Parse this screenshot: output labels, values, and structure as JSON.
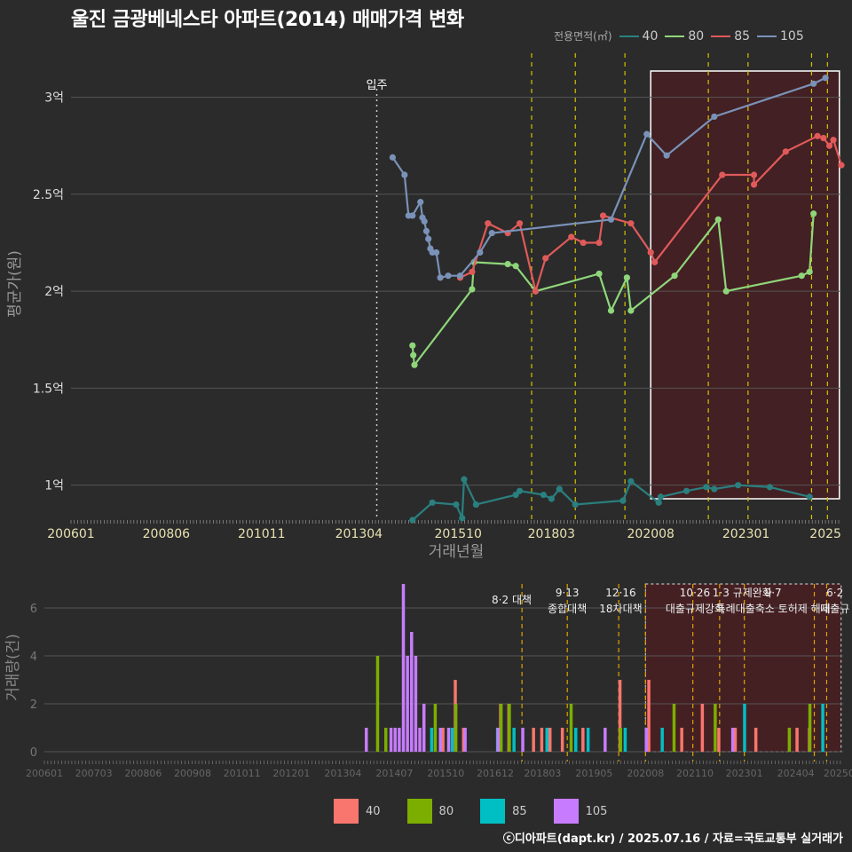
{
  "title": "울진 금광베네스타 아파트(2014) 매매가격 변화",
  "legend_title": "전용면적(㎡)",
  "credit": "ⓒ디아파트(dapt.kr) / 2025.07.16 / 자료=국토교통부 실거래가",
  "colors": {
    "s40": "#2a7f7f",
    "s80": "#8fd67a",
    "s85": "#e05a5a",
    "s105": "#7a92b8",
    "b40": "#f8766d",
    "b80": "#7cae00",
    "b85": "#00bfc4",
    "b105": "#c77cff"
  },
  "chart_data": [
    {
      "type": "line",
      "xlabel": "거래년월",
      "ylabel": "평균가(원)",
      "x_ticks": [
        "200601",
        "200806",
        "201011",
        "201304",
        "201510",
        "201803",
        "202008",
        "202301",
        "2025"
      ],
      "y_ticks": [
        "1억",
        "1.5억",
        "2억",
        "2.5억",
        "3억"
      ],
      "ylim": [
        0.82,
        3.25
      ],
      "annotation": "입주",
      "series": [
        {
          "name": "40",
          "points": [
            [
              2014.6,
              0.82
            ],
            [
              2015.1,
              0.91
            ],
            [
              2015.7,
              0.9
            ],
            [
              2015.85,
              0.83
            ],
            [
              2015.9,
              1.03
            ],
            [
              2016.2,
              0.9
            ],
            [
              2017.2,
              0.95
            ],
            [
              2017.3,
              0.97
            ],
            [
              2017.9,
              0.95
            ],
            [
              2018.1,
              0.93
            ],
            [
              2018.3,
              0.98
            ],
            [
              2018.7,
              0.9
            ],
            [
              2019.9,
              0.92
            ],
            [
              2020.1,
              1.02
            ],
            [
              2020.8,
              0.91
            ],
            [
              2020.85,
              0.94
            ],
            [
              2021.5,
              0.97
            ],
            [
              2022.0,
              0.99
            ],
            [
              2022.2,
              0.98
            ],
            [
              2022.8,
              1.0
            ],
            [
              2023.6,
              0.99
            ],
            [
              2024.6,
              0.94
            ]
          ]
        },
        {
          "name": "80",
          "points": [
            [
              2014.6,
              1.72
            ],
            [
              2014.62,
              1.67
            ],
            [
              2014.65,
              1.62
            ],
            [
              2016.1,
              2.01
            ],
            [
              2016.15,
              2.15
            ],
            [
              2017.0,
              2.14
            ],
            [
              2017.2,
              2.13
            ],
            [
              2017.7,
              2.0
            ],
            [
              2019.3,
              2.09
            ],
            [
              2019.6,
              1.9
            ],
            [
              2020.0,
              2.07
            ],
            [
              2020.1,
              1.9
            ],
            [
              2021.2,
              2.08
            ],
            [
              2022.3,
              2.37
            ],
            [
              2022.5,
              2.0
            ],
            [
              2024.4,
              2.08
            ],
            [
              2024.6,
              2.1
            ],
            [
              2024.7,
              2.4
            ]
          ]
        },
        {
          "name": "85",
          "points": [
            [
              2015.8,
              2.07
            ],
            [
              2016.1,
              2.1
            ],
            [
              2016.5,
              2.35
            ],
            [
              2017.0,
              2.3
            ],
            [
              2017.3,
              2.35
            ],
            [
              2017.7,
              2.0
            ],
            [
              2017.95,
              2.17
            ],
            [
              2018.6,
              2.28
            ],
            [
              2018.9,
              2.25
            ],
            [
              2019.3,
              2.25
            ],
            [
              2019.4,
              2.39
            ],
            [
              2020.1,
              2.35
            ],
            [
              2020.6,
              2.2
            ],
            [
              2020.7,
              2.15
            ],
            [
              2022.4,
              2.6
            ],
            [
              2023.2,
              2.6
            ],
            [
              2023.2,
              2.55
            ],
            [
              2024.0,
              2.72
            ],
            [
              2024.8,
              2.8
            ],
            [
              2024.95,
              2.79
            ],
            [
              2025.1,
              2.75
            ],
            [
              2025.2,
              2.78
            ],
            [
              2025.4,
              2.65
            ]
          ]
        },
        {
          "name": "105",
          "points": [
            [
              2014.1,
              2.69
            ],
            [
              2014.4,
              2.6
            ],
            [
              2014.5,
              2.39
            ],
            [
              2014.6,
              2.39
            ],
            [
              2014.8,
              2.46
            ],
            [
              2014.85,
              2.38
            ],
            [
              2014.9,
              2.36
            ],
            [
              2014.95,
              2.31
            ],
            [
              2015.0,
              2.27
            ],
            [
              2015.05,
              2.22
            ],
            [
              2015.1,
              2.2
            ],
            [
              2015.2,
              2.2
            ],
            [
              2015.3,
              2.07
            ],
            [
              2015.5,
              2.08
            ],
            [
              2015.8,
              2.08
            ],
            [
              2016.3,
              2.2
            ],
            [
              2016.6,
              2.3
            ],
            [
              2019.6,
              2.37
            ],
            [
              2020.5,
              2.81
            ],
            [
              2021.0,
              2.7
            ],
            [
              2022.2,
              2.9
            ],
            [
              2024.7,
              3.07
            ],
            [
              2025.0,
              3.1
            ]
          ]
        }
      ]
    },
    {
      "type": "bar",
      "ylabel": "거래량(건)",
      "x_ticks": [
        "200601",
        "200703",
        "200806",
        "200908",
        "201011",
        "201201",
        "201304",
        "201407",
        "201510",
        "201612",
        "201803",
        "201905",
        "202008",
        "202110",
        "202301",
        "202404",
        "20250"
      ],
      "y_ticks": [
        "0",
        "2",
        "4",
        "6"
      ],
      "ylim": [
        0,
        7
      ],
      "events": [
        "8·2 대책",
        "9·13 종합대책",
        "12·16 18차대책",
        "10·26 대출규제강화",
        "1·3 규제완화",
        "9·7 특례대출축소 토허제 해제",
        "6·2 대출규"
      ],
      "series": [
        {
          "name": "40",
          "bars": [
            [
              2015.7,
              1
            ],
            [
              2016.0,
              3
            ],
            [
              2016.2,
              1
            ],
            [
              2017.1,
              2
            ],
            [
              2017.3,
              2
            ],
            [
              2017.9,
              1
            ],
            [
              2018.1,
              1
            ],
            [
              2018.3,
              1
            ],
            [
              2018.6,
              1
            ],
            [
              2019.1,
              1
            ],
            [
              2020.0,
              3
            ],
            [
              2020.7,
              3
            ],
            [
              2021.5,
              1
            ],
            [
              2022.0,
              2
            ],
            [
              2022.4,
              1
            ],
            [
              2022.8,
              1
            ],
            [
              2023.3,
              1
            ],
            [
              2024.3,
              1
            ],
            [
              2024.6,
              1
            ]
          ]
        },
        {
          "name": "80",
          "bars": [
            [
              2014.1,
              4
            ],
            [
              2014.3,
              1
            ],
            [
              2015.5,
              2
            ],
            [
              2016.0,
              2
            ],
            [
              2017.1,
              2
            ],
            [
              2017.3,
              2
            ],
            [
              2018.8,
              2
            ],
            [
              2020.0,
              1
            ],
            [
              2021.3,
              2
            ],
            [
              2022.3,
              2
            ],
            [
              2024.1,
              1
            ],
            [
              2024.6,
              2
            ]
          ]
        },
        {
          "name": "85",
          "bars": [
            [
              2015.4,
              1
            ],
            [
              2015.9,
              1
            ],
            [
              2017.0,
              1
            ],
            [
              2017.4,
              1
            ],
            [
              2018.2,
              1
            ],
            [
              2018.9,
              1
            ],
            [
              2019.2,
              1
            ],
            [
              2020.1,
              1
            ],
            [
              2021.0,
              1
            ],
            [
              2023.0,
              2
            ],
            [
              2024.9,
              2
            ]
          ]
        },
        {
          "name": "105",
          "bars": [
            [
              2013.8,
              1
            ],
            [
              2014.4,
              1
            ],
            [
              2014.5,
              1
            ],
            [
              2014.6,
              1
            ],
            [
              2014.7,
              7
            ],
            [
              2014.8,
              4
            ],
            [
              2014.9,
              5
            ],
            [
              2015.0,
              4
            ],
            [
              2015.1,
              1
            ],
            [
              2015.2,
              2
            ],
            [
              2015.6,
              1
            ],
            [
              2015.8,
              1
            ],
            [
              2016.2,
              1
            ],
            [
              2017.0,
              1
            ],
            [
              2017.6,
              1
            ],
            [
              2019.6,
              1
            ],
            [
              2020.6,
              1
            ],
            [
              2022.7,
              1
            ]
          ]
        }
      ]
    }
  ]
}
